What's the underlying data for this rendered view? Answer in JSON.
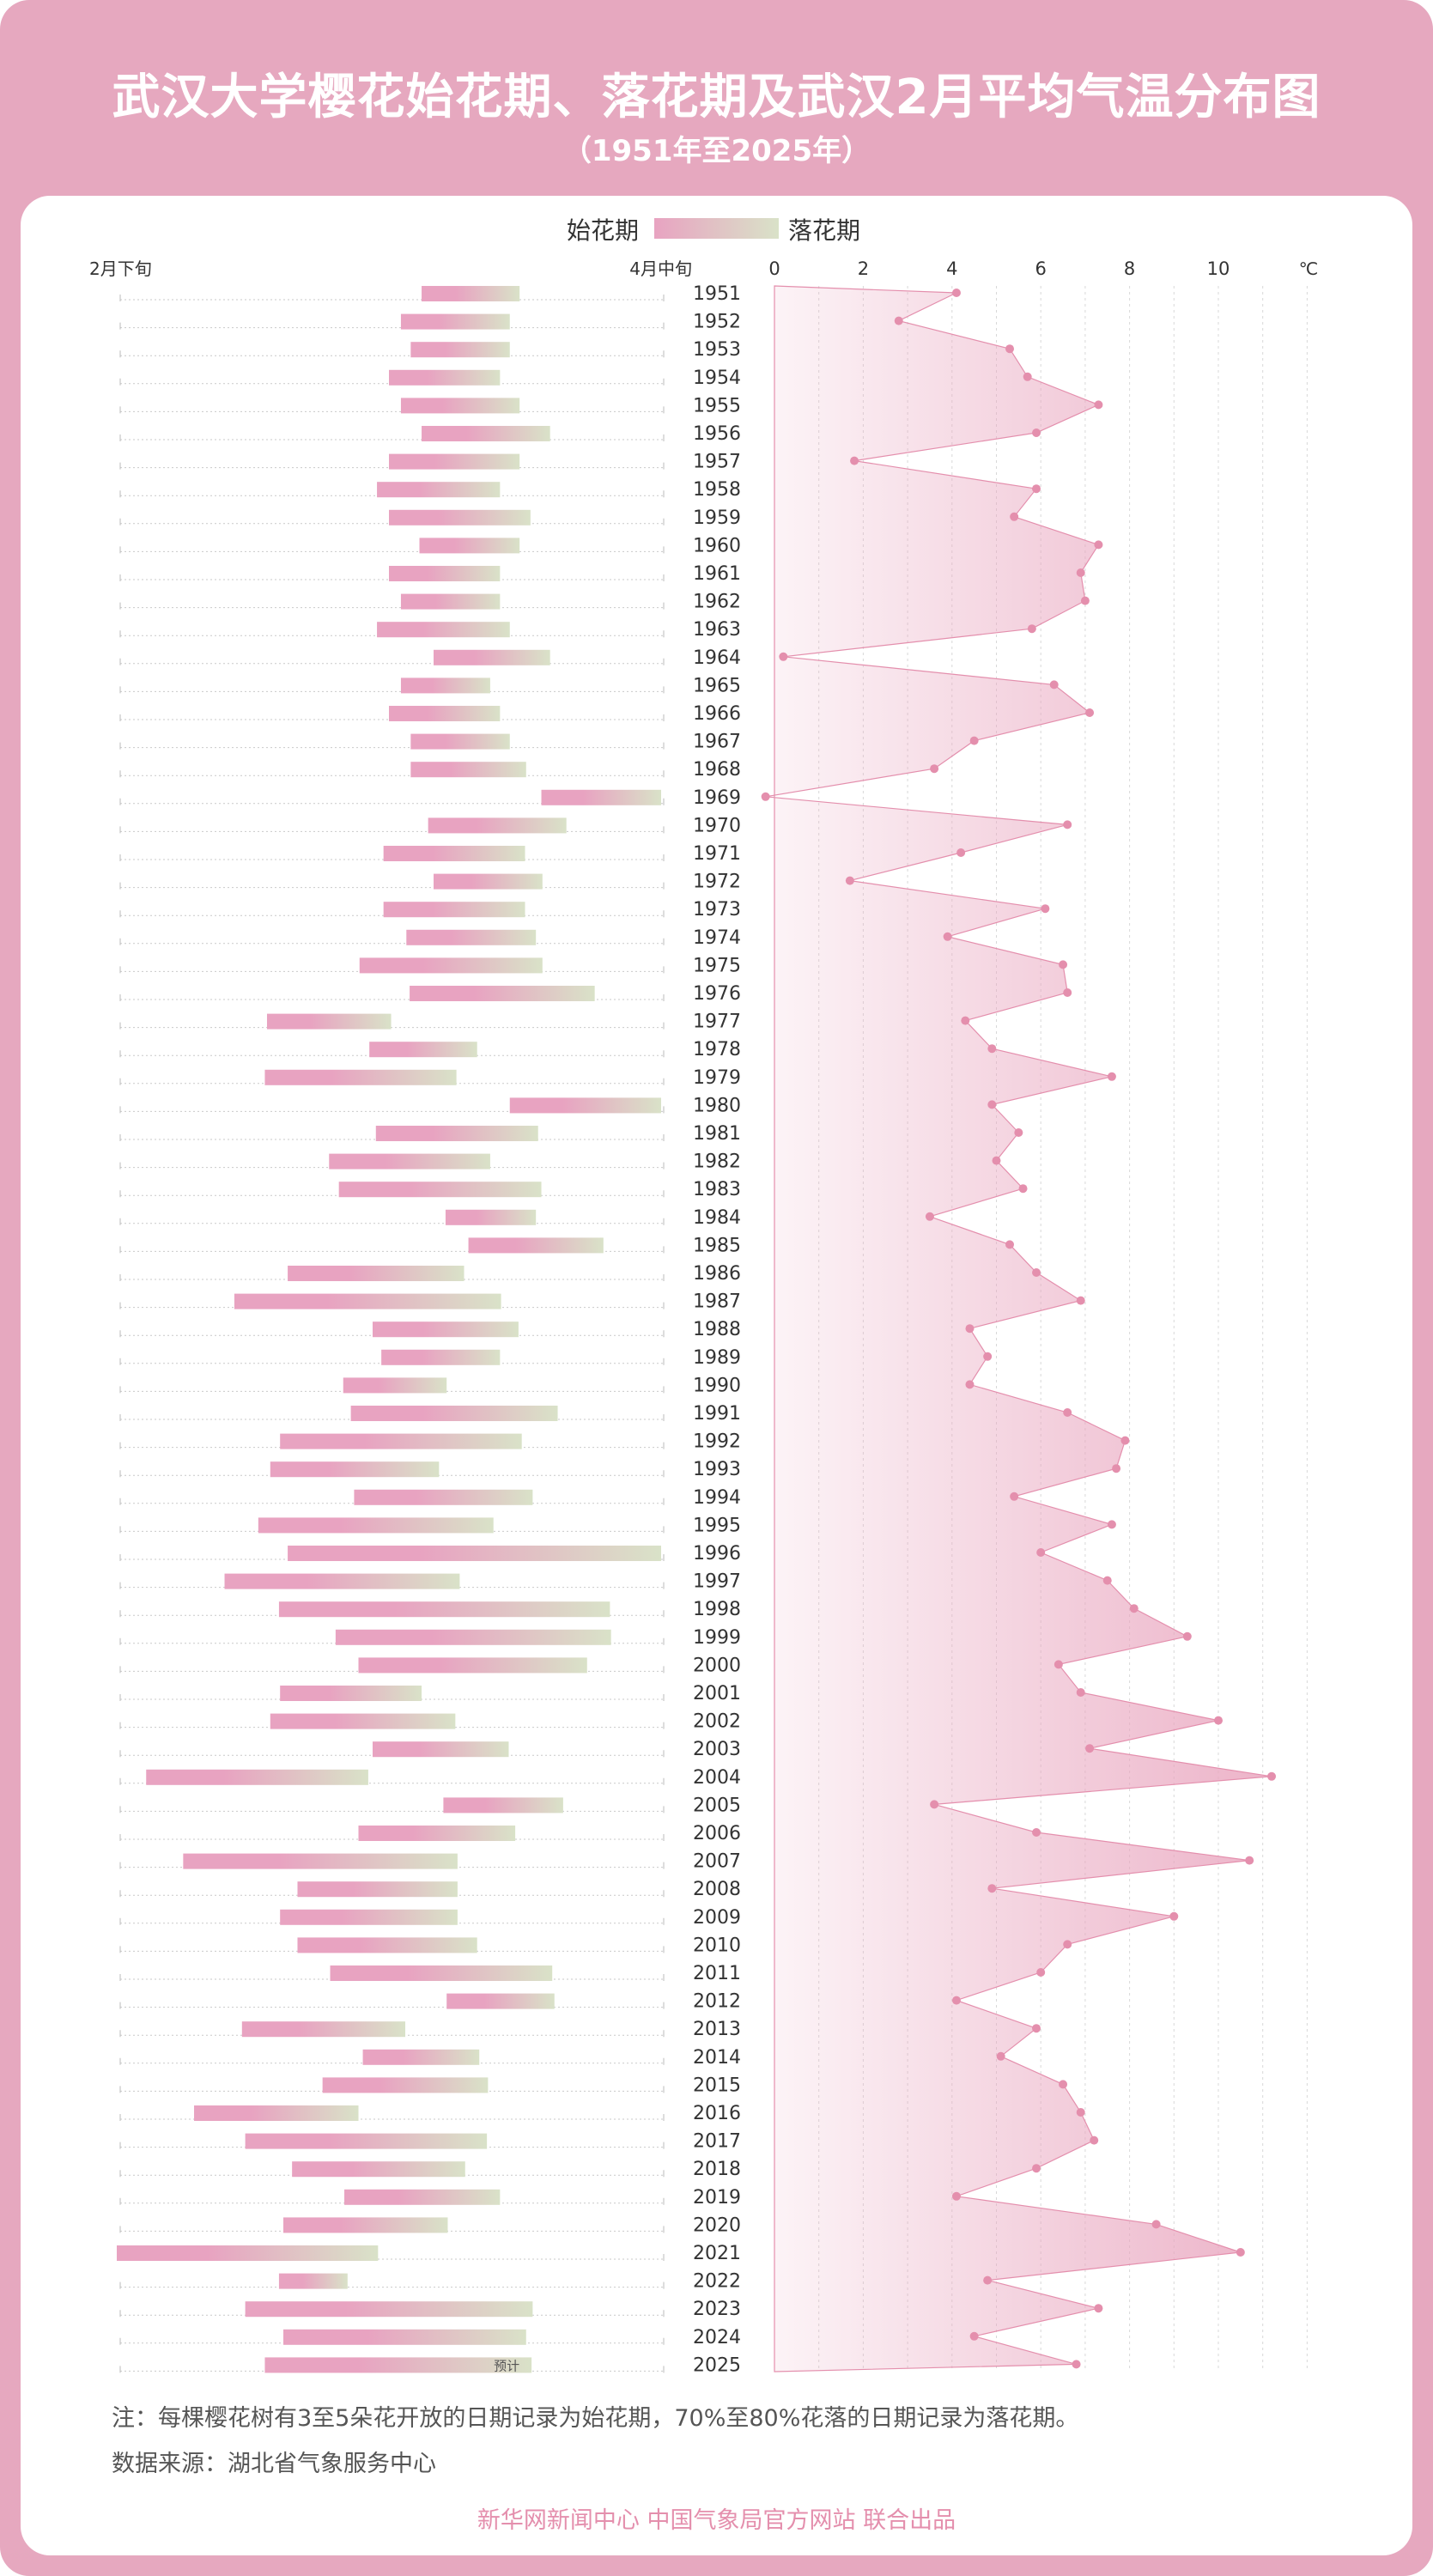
{
  "title": "武汉大学樱花始花期、落花期及武汉2月平均气温分布图",
  "subtitle": "（1951年至2025年）",
  "note": "注：每棵樱花树有3至5朵花开放的日期记录为始花期，70%至80%花落的日期记录为落花期。",
  "source": "数据来源：湖北省气象服务中心",
  "credit": "新华网新闻中心 中国气象局官方网站 联合出品",
  "colors": {
    "frame": "#e6a8bf",
    "bar_start": "#e8a3c1",
    "bar_end": "#d9e2c8",
    "temp_line": "#e48fad",
    "temp_fill": "#e9a6bf",
    "dot": "#e48fad"
  },
  "chart_data": {
    "type": "bar+area",
    "legend": [
      "始花期",
      "落花期"
    ],
    "legend_placement": "top-center",
    "years": [
      1951,
      1952,
      1953,
      1954,
      1955,
      1956,
      1957,
      1958,
      1959,
      1960,
      1961,
      1962,
      1963,
      1964,
      1965,
      1966,
      1967,
      1968,
      1969,
      1970,
      1971,
      1972,
      1973,
      1974,
      1975,
      1976,
      1977,
      1978,
      1979,
      1980,
      1981,
      1982,
      1983,
      1984,
      1985,
      1986,
      1987,
      1988,
      1989,
      1990,
      1991,
      1992,
      1993,
      1994,
      1995,
      1996,
      1997,
      1998,
      1999,
      2000,
      2001,
      2002,
      2003,
      2004,
      2005,
      2006,
      2007,
      2008,
      2009,
      2010,
      2011,
      2012,
      2013,
      2014,
      2015,
      2016,
      2017,
      2018,
      2019,
      2020,
      2021,
      2022,
      2023,
      2024,
      2025
    ],
    "date_axis": {
      "left_label": "2月下旬",
      "right_label": "4月中旬",
      "range_days": 50,
      "unit": "days after start of late February"
    },
    "bloom_start": [
      28.0,
      26.1,
      27.0,
      25.0,
      26.1,
      28.0,
      25.0,
      23.9,
      25.0,
      27.8,
      25.0,
      26.1,
      23.9,
      29.1,
      26.1,
      25.0,
      27.0,
      27.0,
      39.0,
      28.6,
      24.5,
      29.1,
      24.5,
      26.6,
      22.3,
      26.9,
      13.8,
      23.2,
      13.6,
      36.1,
      23.8,
      19.5,
      20.4,
      30.2,
      32.3,
      15.7,
      10.8,
      23.5,
      24.3,
      20.8,
      21.5,
      15.0,
      14.1,
      21.8,
      13.0,
      15.7,
      9.9,
      14.9,
      20.1,
      22.2,
      15.0,
      14.1,
      23.5,
      2.7,
      30.0,
      22.2,
      6.1,
      16.6,
      15.0,
      16.6,
      19.6,
      30.3,
      11.5,
      22.6,
      18.9,
      7.1,
      11.8,
      16.1,
      20.9,
      15.3,
      0.0,
      14.9,
      11.8,
      15.3,
      13.6
    ],
    "bloom_end": [
      37.0,
      36.1,
      36.1,
      35.2,
      37.0,
      39.8,
      37.0,
      35.2,
      38.0,
      37.0,
      35.2,
      35.2,
      36.1,
      39.8,
      34.3,
      35.2,
      36.1,
      37.6,
      50.0,
      41.3,
      37.5,
      39.1,
      37.5,
      38.5,
      39.1,
      43.9,
      25.2,
      33.1,
      31.2,
      50.0,
      38.7,
      34.3,
      39.0,
      38.5,
      44.7,
      31.9,
      35.3,
      36.9,
      35.2,
      30.3,
      40.5,
      37.2,
      29.6,
      38.2,
      34.6,
      50.0,
      31.5,
      45.3,
      45.4,
      43.2,
      28.0,
      31.1,
      36.0,
      23.1,
      41.0,
      36.6,
      31.3,
      31.3,
      31.3,
      33.1,
      40.0,
      40.2,
      26.5,
      33.3,
      34.1,
      22.2,
      34.0,
      32.0,
      35.2,
      30.4,
      24.0,
      21.2,
      38.2,
      37.6,
      38.1
    ],
    "forecast_label": "预计",
    "temperature": {
      "label": "武汉2月平均气温",
      "unit": "℃",
      "xlim": [
        0,
        12
      ],
      "ticks": [
        0,
        2,
        4,
        6,
        8,
        10
      ],
      "values": [
        4.1,
        2.8,
        5.3,
        5.7,
        7.3,
        5.9,
        1.8,
        5.9,
        5.4,
        7.3,
        6.9,
        7.0,
        5.8,
        0.2,
        6.3,
        7.1,
        4.5,
        3.6,
        -0.2,
        6.6,
        4.2,
        1.7,
        6.1,
        3.9,
        6.5,
        6.6,
        4.3,
        4.9,
        7.6,
        4.9,
        5.5,
        5.0,
        5.6,
        3.5,
        5.3,
        5.9,
        6.9,
        4.4,
        4.8,
        4.4,
        6.6,
        7.9,
        7.7,
        5.4,
        7.6,
        6.0,
        7.5,
        8.1,
        9.3,
        6.4,
        6.9,
        10.0,
        7.1,
        11.2,
        3.6,
        5.9,
        10.7,
        4.9,
        9.0,
        6.6,
        6.0,
        4.1,
        5.9,
        5.1,
        6.5,
        6.9,
        7.2,
        5.9,
        4.1,
        8.6,
        10.5,
        4.8,
        7.3,
        4.5,
        6.8
      ]
    }
  }
}
